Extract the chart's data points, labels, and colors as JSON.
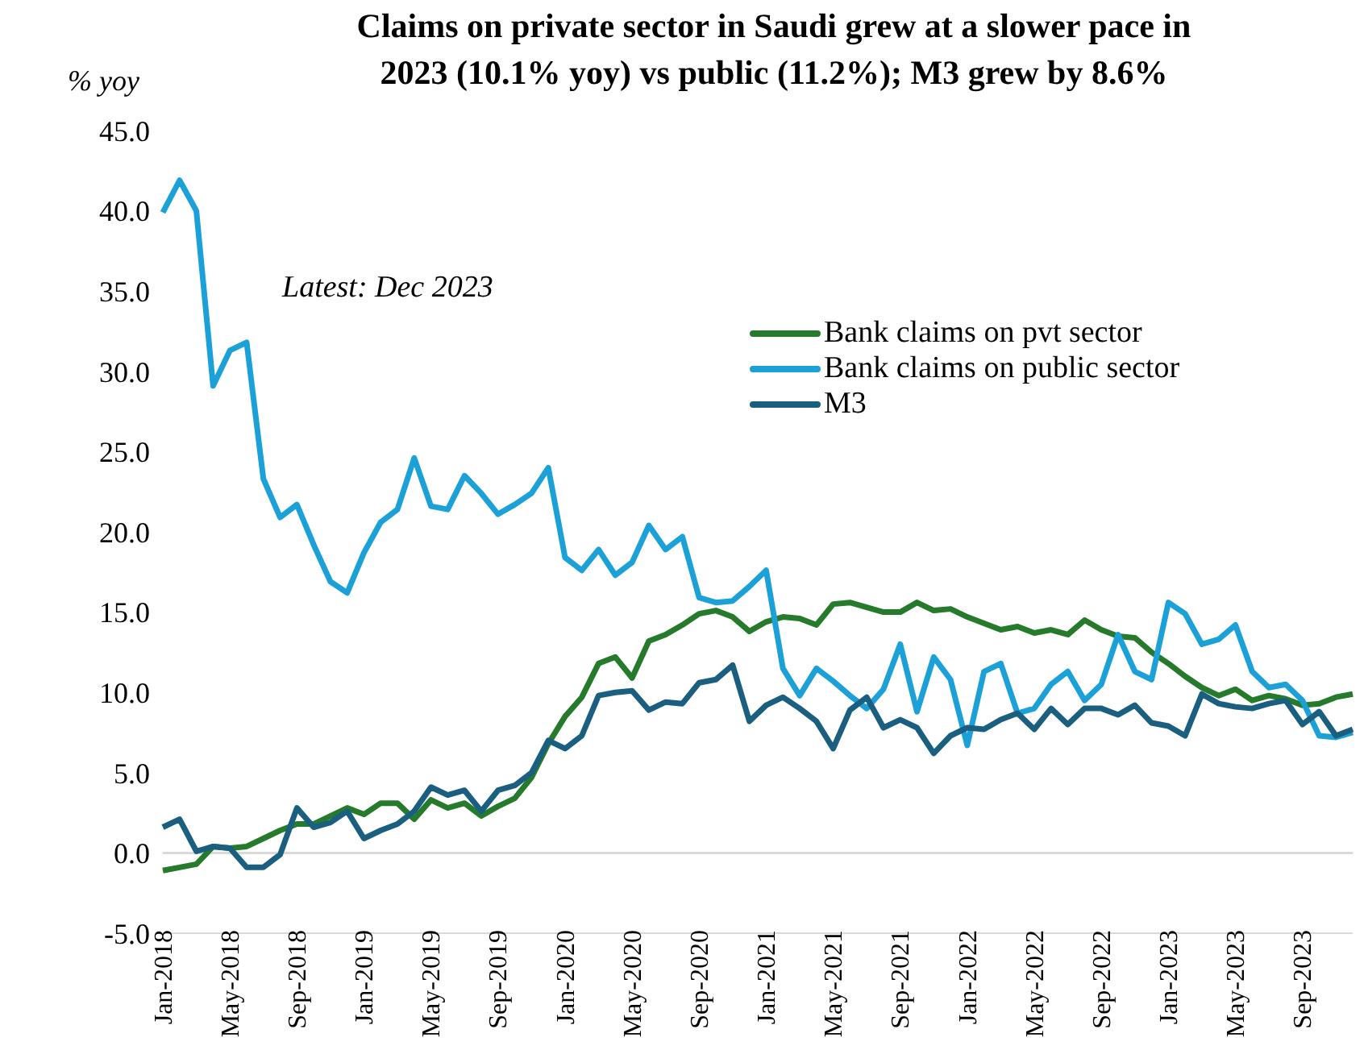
{
  "chart_data": {
    "type": "line",
    "title": "Claims on private sector in Saudi grew at a slower pace in 2023 (10.1% yoy) vs public (11.2%); M3 grew by 8.6%",
    "ylabel": "% yoy",
    "annotations": [
      "Latest: Dec 2023"
    ],
    "categories": [
      "Jan-2018",
      null,
      null,
      null,
      "May-2018",
      null,
      null,
      null,
      "Sep-2018",
      null,
      null,
      null,
      "Jan-2019",
      null,
      null,
      null,
      "May-2019",
      null,
      null,
      null,
      "Sep-2019",
      null,
      null,
      null,
      "Jan-2020",
      null,
      null,
      null,
      "May-2020",
      null,
      null,
      null,
      "Sep-2020",
      null,
      null,
      null,
      "Jan-2021",
      null,
      null,
      null,
      "May-2021",
      null,
      null,
      null,
      "Sep-2021",
      null,
      null,
      null,
      "Jan-2022",
      null,
      null,
      null,
      "May-2022",
      null,
      null,
      null,
      "Sep-2022",
      null,
      null,
      null,
      "Jan-2023",
      null,
      null,
      null,
      "May-2023",
      null,
      null,
      null,
      "Sep-2023",
      null,
      null,
      null
    ],
    "series": [
      {
        "name": "Bank claims on pvt sector",
        "color": "#267a2b",
        "values": [
          -1.1,
          -0.9,
          -0.7,
          0.4,
          0.3,
          0.4,
          0.9,
          1.4,
          1.8,
          1.8,
          2.3,
          2.8,
          2.4,
          3.1,
          3.1,
          2.1,
          3.3,
          2.8,
          3.1,
          2.3,
          2.9,
          3.4,
          4.7,
          6.8,
          8.5,
          9.7,
          11.8,
          12.2,
          10.9,
          13.2,
          13.6,
          14.2,
          14.9,
          15.1,
          14.7,
          13.8,
          14.4,
          14.7,
          14.6,
          14.2,
          15.5,
          15.6,
          15.3,
          15.0,
          15.0,
          15.6,
          15.1,
          15.2,
          14.7,
          14.3,
          13.9,
          14.1,
          13.7,
          13.9,
          13.6,
          14.5,
          13.9,
          13.5,
          13.4,
          12.5,
          11.8,
          11.0,
          10.3,
          9.8,
          10.2,
          9.5,
          9.8,
          9.6,
          9.2,
          9.3,
          9.7,
          9.9
        ]
      },
      {
        "name": "Bank claims on public sector",
        "color": "#1ba1d8",
        "values": [
          39.9,
          41.9,
          40.0,
          29.1,
          31.3,
          31.8,
          23.3,
          20.9,
          21.7,
          19.2,
          16.9,
          16.2,
          18.7,
          20.6,
          21.4,
          24.6,
          21.6,
          21.4,
          23.5,
          22.4,
          21.1,
          21.7,
          22.4,
          24.0,
          18.4,
          17.6,
          18.9,
          17.3,
          18.1,
          20.4,
          18.9,
          19.7,
          15.9,
          15.6,
          15.7,
          16.6,
          17.6,
          11.5,
          9.8,
          11.5,
          10.7,
          9.8,
          9.0,
          10.2,
          13.0,
          8.8,
          12.2,
          10.8,
          6.7,
          11.3,
          11.8,
          8.7,
          9.0,
          10.5,
          11.3,
          9.5,
          10.5,
          13.6,
          11.3,
          10.8,
          15.6,
          14.9,
          13.0,
          13.3,
          14.2,
          11.3,
          10.3,
          10.5,
          9.5,
          7.3,
          7.2,
          7.5
        ]
      },
      {
        "name": "M3",
        "color": "#1a5f80",
        "values": [
          1.6,
          2.1,
          0.1,
          0.4,
          0.3,
          -0.9,
          -0.9,
          -0.1,
          2.8,
          1.6,
          1.9,
          2.6,
          0.9,
          1.4,
          1.8,
          2.6,
          4.1,
          3.6,
          3.9,
          2.6,
          3.9,
          4.2,
          5.0,
          7.0,
          6.5,
          7.3,
          9.8,
          10.0,
          10.1,
          8.9,
          9.4,
          9.3,
          10.6,
          10.8,
          11.7,
          8.2,
          9.2,
          9.7,
          9.0,
          8.2,
          6.5,
          8.9,
          9.7,
          7.8,
          8.3,
          7.8,
          6.2,
          7.3,
          7.8,
          7.7,
          8.3,
          8.7,
          7.7,
          9.0,
          8.0,
          9.0,
          9.0,
          8.6,
          9.2,
          8.1,
          7.9,
          7.3,
          9.9,
          9.3,
          9.1,
          9.0,
          9.3,
          9.5,
          8.0,
          8.8,
          7.3,
          7.7
        ]
      }
    ],
    "ylim": [
      -5,
      45
    ],
    "yticks": [
      {
        "value": -5,
        "label": "-5.0"
      },
      {
        "value": 0,
        "label": "0.0"
      },
      {
        "value": 5,
        "label": "5.0"
      },
      {
        "value": 10,
        "label": "10.0"
      },
      {
        "value": 15,
        "label": "15.0"
      },
      {
        "value": 20,
        "label": "20.0"
      },
      {
        "value": 25,
        "label": "25.0"
      },
      {
        "value": 30,
        "label": "30.0"
      },
      {
        "value": 35,
        "label": "35.0"
      },
      {
        "value": 40,
        "label": "40.0"
      },
      {
        "value": 45,
        "label": "45.0"
      }
    ],
    "ref_lines": [
      {
        "axis": "y",
        "value": 0,
        "color": "#d9d9d9"
      }
    ],
    "legend": "top right",
    "marker": "none",
    "line_style": "solid",
    "grid": false
  }
}
